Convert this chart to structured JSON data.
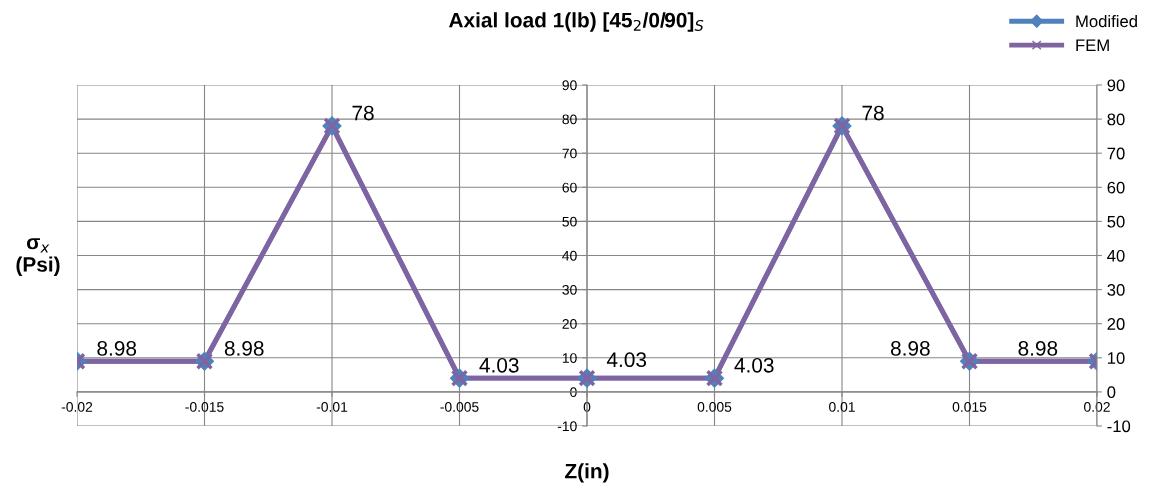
{
  "chart_data": {
    "type": "line",
    "title": "Axial load 1(lb) [45$_{2}$/0/90]$_{S}$",
    "xlabel": "Z(in)",
    "ylabel": "σ$_{x}$\n(Psi)",
    "x": [
      -0.02,
      -0.015,
      -0.01,
      -0.005,
      0,
      0.005,
      0.01,
      0.015,
      0.02
    ],
    "series": [
      {
        "name": "Modified",
        "color": "#4f81bd",
        "marker": "diamond",
        "values": [
          8.98,
          8.98,
          78,
          4.03,
          4.03,
          4.03,
          78,
          8.98,
          8.98
        ],
        "data_labels": true
      },
      {
        "name": "FEM",
        "color": "#8064a2",
        "marker": "cross",
        "values": [
          8.98,
          8.98,
          78,
          4.03,
          4.03,
          4.03,
          78,
          8.98,
          8.98
        ]
      }
    ],
    "xlim": [
      -0.02,
      0.02
    ],
    "xticks": [
      -0.02,
      -0.015,
      -0.01,
      -0.005,
      0,
      0.005,
      0.01,
      0.015,
      0.02
    ],
    "ylim": [
      -10,
      90
    ],
    "yticks": [
      -10,
      0,
      10,
      20,
      30,
      40,
      50,
      60,
      70,
      80,
      90
    ],
    "y2lim": [
      -10,
      90
    ],
    "y2ticks": [
      -10,
      0,
      10,
      20,
      30,
      40,
      50,
      60,
      70,
      80,
      90
    ],
    "grid": true,
    "legend": "top right",
    "line_style": "solid"
  }
}
